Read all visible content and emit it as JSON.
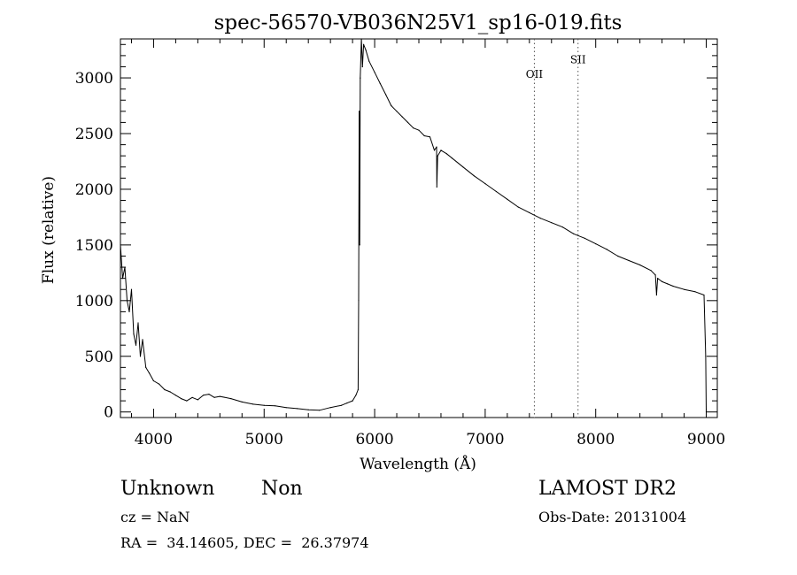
{
  "chart_data": {
    "type": "line",
    "title": "spec-56570-VB036N25V1_sp16-019.fits",
    "xlabel": "Wavelength (Å)",
    "ylabel": "Flux (relative)",
    "xlim": [
      3700,
      9100
    ],
    "ylim": [
      -50,
      3350
    ],
    "xticks": [
      4000,
      5000,
      6000,
      7000,
      8000,
      9000
    ],
    "yticks": [
      0,
      500,
      1000,
      1500,
      2000,
      2500,
      3000
    ],
    "grid": false,
    "series": [
      {
        "x": [
          3700,
          3720,
          3740,
          3760,
          3780,
          3800,
          3820,
          3840,
          3860,
          3880,
          3900,
          3930,
          3960,
          4000,
          4050,
          4100,
          4150,
          4200,
          4250,
          4300,
          4350,
          4400,
          4450,
          4500,
          4550,
          4600,
          4700,
          4800,
          4900,
          5000,
          5100,
          5200,
          5300,
          5400,
          5500,
          5600,
          5700,
          5750,
          5800,
          5830,
          5850,
          5855,
          5860,
          5865,
          5870,
          5880,
          5890,
          5900,
          5920,
          5950,
          6000,
          6050,
          6100,
          6150,
          6200,
          6250,
          6300,
          6350,
          6400,
          6450,
          6500,
          6540,
          6560,
          6563,
          6570,
          6600,
          6650,
          6700,
          6800,
          6900,
          7000,
          7100,
          7200,
          7300,
          7400,
          7500,
          7600,
          7700,
          7800,
          7900,
          8000,
          8100,
          8200,
          8300,
          8400,
          8500,
          8540,
          8550,
          8560,
          8600,
          8650,
          8700,
          8800,
          8900,
          8980,
          8995,
          9000
        ],
        "y": [
          1500,
          1200,
          1300,
          1000,
          900,
          1100,
          700,
          600,
          800,
          500,
          650,
          400,
          350,
          280,
          250,
          200,
          180,
          150,
          120,
          100,
          130,
          110,
          150,
          160,
          130,
          140,
          120,
          90,
          70,
          60,
          55,
          40,
          30,
          20,
          15,
          40,
          60,
          80,
          100,
          150,
          200,
          1000,
          2700,
          1500,
          3000,
          3350,
          3100,
          3300,
          3250,
          3150,
          3050,
          2950,
          2850,
          2750,
          2700,
          2650,
          2600,
          2550,
          2530,
          2480,
          2470,
          2350,
          2380,
          2020,
          2300,
          2350,
          2320,
          2280,
          2200,
          2120,
          2050,
          1980,
          1910,
          1840,
          1790,
          1740,
          1700,
          1660,
          1600,
          1560,
          1510,
          1460,
          1400,
          1360,
          1320,
          1270,
          1230,
          1050,
          1200,
          1170,
          1150,
          1130,
          1100,
          1080,
          1050,
          500,
          0
        ]
      }
    ],
    "annotations": [
      {
        "text": "OII",
        "x": 7445,
        "y": 3000
      },
      {
        "text": "SII",
        "x": 7840,
        "y": 3130
      }
    ]
  },
  "footer": {
    "class_label": "Unknown",
    "subclass_label": "Non",
    "cz_text": "cz = NaN",
    "radec_text": "RA =  34.14605, DEC =  26.37974",
    "survey_text": "LAMOST DR2",
    "obsdate_text": "Obs-Date: 20131004"
  }
}
